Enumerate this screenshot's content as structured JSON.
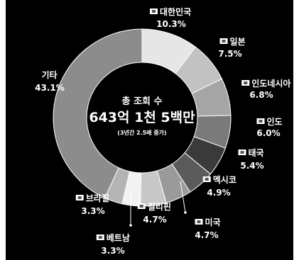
{
  "chart_data": {
    "type": "pie",
    "variant": "donut",
    "background": "#000000",
    "center": {
      "title": "총 조회 수",
      "value": "643억 1천 5백만",
      "note": "(3년간 2.5배 증가)"
    },
    "slices": [
      {
        "name": "대한민국",
        "value": 10.3,
        "label": "10.3%",
        "color": "#e6e6e6",
        "flag": "kr-flag-icon"
      },
      {
        "name": "일본",
        "value": 7.5,
        "label": "7.5%",
        "color": "#c2c2c2",
        "flag": "jp-flag-icon"
      },
      {
        "name": "인도네시아",
        "value": 6.8,
        "label": "6.8%",
        "color": "#a6a6a6",
        "flag": "id-flag-icon"
      },
      {
        "name": "인도",
        "value": 6.0,
        "label": "6.0%",
        "color": "#7a7a7a",
        "flag": "in-flag-icon"
      },
      {
        "name": "태국",
        "value": 5.4,
        "label": "5.4%",
        "color": "#3a3a3a",
        "flag": "th-flag-icon"
      },
      {
        "name": "멕시코",
        "value": 4.9,
        "label": "4.9%",
        "color": "#5a5a5a",
        "flag": "mx-flag-icon"
      },
      {
        "name": "미국",
        "value": 4.7,
        "label": "4.7%",
        "color": "#9a9a9a",
        "flag": "us-flag-icon"
      },
      {
        "name": "필리핀",
        "value": 4.7,
        "label": "4.7%",
        "color": "#c8c8c8",
        "flag": "ph-flag-icon"
      },
      {
        "name": "베트남",
        "value": 3.3,
        "label": "3.3%",
        "color": "#f2f2f2",
        "flag": "vn-flag-icon"
      },
      {
        "name": "브라질",
        "value": 3.3,
        "label": "3.3%",
        "color": "#b4b4b4",
        "flag": "br-flag-icon"
      },
      {
        "name": "기타",
        "value": 43.1,
        "label": "43.1%",
        "color": "#8c8c8c",
        "flag": ""
      }
    ]
  }
}
